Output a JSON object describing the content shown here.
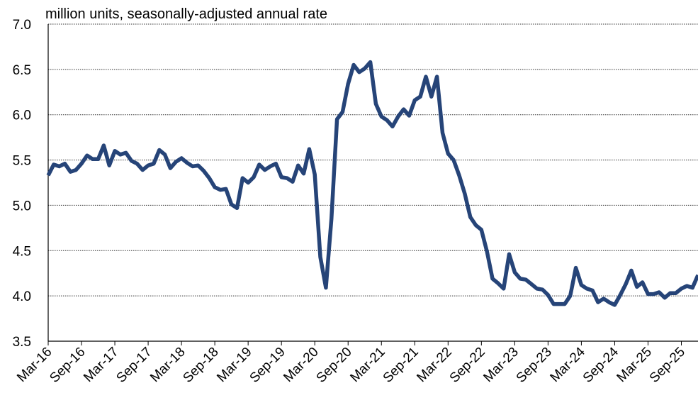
{
  "chart_data": {
    "type": "line",
    "subtitle": "million units, seasonally-adjusted annual rate",
    "categories": [
      "Mar-16",
      null,
      null,
      null,
      null,
      null,
      "Sep-16",
      null,
      null,
      null,
      null,
      null,
      "Mar-17",
      null,
      null,
      null,
      null,
      null,
      "Sep-17",
      null,
      null,
      null,
      null,
      null,
      "Mar-18",
      null,
      null,
      null,
      null,
      null,
      "Sep-18",
      null,
      null,
      null,
      null,
      null,
      "Mar-19",
      null,
      null,
      null,
      null,
      null,
      "Sep-19",
      null,
      null,
      null,
      null,
      null,
      "Mar-20",
      null,
      null,
      null,
      null,
      null,
      "Sep-20",
      null,
      null,
      null,
      null,
      null,
      "Mar-21",
      null,
      null,
      null,
      null,
      null,
      "Sep-21",
      null,
      null,
      null,
      null,
      null,
      "Mar-22",
      null,
      null,
      null,
      null,
      null,
      "Sep-22",
      null,
      null,
      null,
      null,
      null,
      "Mar-23",
      null,
      null,
      null,
      null,
      null,
      "Sep-23",
      null,
      null,
      null,
      null,
      null,
      "Mar-24",
      null,
      null,
      null,
      null,
      null,
      "Sep-24",
      null,
      null,
      null,
      null,
      null,
      "Mar-25",
      null,
      null,
      null,
      null,
      null,
      "Sep-25",
      null,
      null,
      null
    ],
    "values": [
      5.33,
      5.45,
      5.43,
      5.46,
      5.37,
      5.39,
      5.46,
      5.55,
      5.51,
      5.51,
      5.66,
      5.44,
      5.6,
      5.56,
      5.58,
      5.49,
      5.46,
      5.39,
      5.44,
      5.46,
      5.61,
      5.56,
      5.41,
      5.48,
      5.52,
      5.47,
      5.43,
      5.44,
      5.38,
      5.3,
      5.2,
      5.17,
      5.18,
      5.01,
      4.97,
      5.3,
      5.25,
      5.31,
      5.45,
      5.39,
      5.43,
      5.46,
      5.31,
      5.3,
      5.26,
      5.44,
      5.35,
      5.62,
      5.34,
      4.43,
      4.09,
      4.85,
      5.95,
      6.03,
      6.34,
      6.55,
      6.47,
      6.51,
      6.58,
      6.12,
      5.98,
      5.94,
      5.87,
      5.98,
      6.06,
      5.99,
      6.16,
      6.2,
      6.42,
      6.2,
      6.42,
      5.8,
      5.57,
      5.5,
      5.33,
      5.13,
      4.87,
      4.78,
      4.73,
      4.49,
      4.19,
      4.14,
      4.08,
      4.46,
      4.26,
      4.19,
      4.18,
      4.13,
      4.08,
      4.07,
      4.01,
      3.91,
      3.91,
      3.91,
      4.0,
      4.31,
      4.12,
      4.08,
      4.06,
      3.93,
      3.97,
      3.93,
      3.9,
      4.01,
      4.13,
      4.28,
      4.1,
      4.15,
      4.02,
      4.02,
      4.04,
      3.98,
      4.03,
      4.03,
      4.08,
      4.11,
      4.09,
      4.23
    ],
    "color": "#264478",
    "ylim": [
      3.5,
      7.0
    ],
    "yticks": [
      {
        "value": 3.5,
        "label": "3.5"
      },
      {
        "value": 4,
        "label": "4.0"
      },
      {
        "value": 4.5,
        "label": "4.5"
      },
      {
        "value": 5,
        "label": "5.0"
      },
      {
        "value": 5.5,
        "label": "5.5"
      },
      {
        "value": 6,
        "label": "6.0"
      },
      {
        "value": 6.5,
        "label": "6.5"
      },
      {
        "value": 7,
        "label": "7.0"
      }
    ],
    "grid": true
  }
}
